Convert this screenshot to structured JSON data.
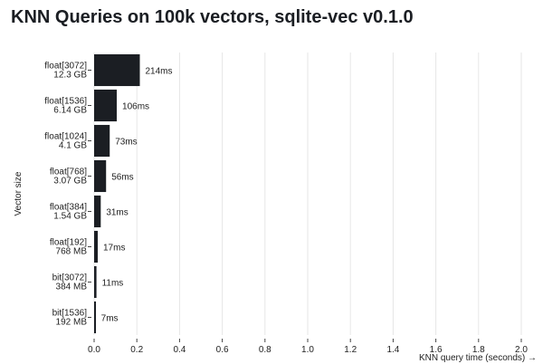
{
  "chart_data": {
    "type": "bar",
    "orientation": "horizontal",
    "title": "KNN Queries on 100k vectors, sqlite-vec v0.1.0",
    "xlabel": "KNN query time (seconds) →",
    "ylabel": "Vector size",
    "categories": [
      [
        "float[3072]",
        "12.3 GB"
      ],
      [
        "float[1536]",
        "6.14 GB"
      ],
      [
        "float[1024]",
        "4.1 GB"
      ],
      [
        "float[768]",
        "3.07 GB"
      ],
      [
        "float[384]",
        "1.54 GB"
      ],
      [
        "float[192]",
        "768 MB"
      ],
      [
        "bit[3072]",
        "384 MB"
      ],
      [
        "bit[1536]",
        "192 MB"
      ]
    ],
    "values": [
      0.214,
      0.106,
      0.073,
      0.056,
      0.031,
      0.017,
      0.011,
      0.007
    ],
    "data_labels": [
      "214ms",
      "106ms",
      "73ms",
      "56ms",
      "31ms",
      "17ms",
      "11ms",
      "7ms"
    ],
    "xlim": [
      0,
      2.0
    ],
    "xticks": [
      "0.0",
      "0.2",
      "0.4",
      "0.6",
      "0.8",
      "1.0",
      "1.2",
      "1.4",
      "1.6",
      "1.8",
      "2.0"
    ],
    "grid": true,
    "bar_color": "#1b1e23"
  }
}
